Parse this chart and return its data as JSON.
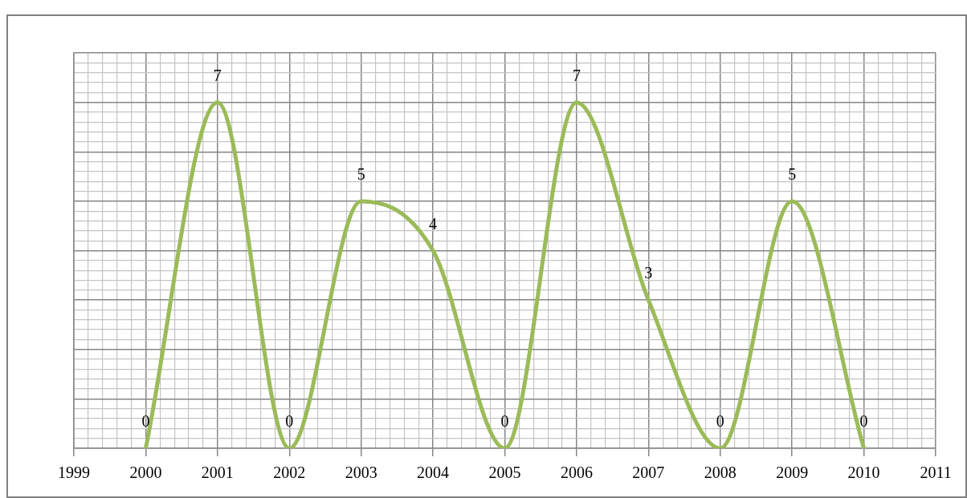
{
  "chart_data": {
    "type": "line",
    "x": [
      2000,
      2001,
      2002,
      2003,
      2004,
      2005,
      2006,
      2007,
      2008,
      2009,
      2010
    ],
    "series": [
      {
        "color": "#9bbb59",
        "values": [
          0,
          7,
          0,
          5,
          4,
          0,
          7,
          3,
          0,
          5,
          0
        ]
      }
    ],
    "xlim": [
      1999,
      2011
    ],
    "xticks": [
      1999,
      {
        "value": 1999.2,
        "label": null
      },
      {
        "value": 1999.4,
        "label": null
      },
      {
        "value": 1999.6,
        "label": null
      },
      {
        "value": 1999.8,
        "label": null
      },
      2000,
      {
        "value": 2000.2,
        "label": null
      },
      {
        "value": 2000.4,
        "label": null
      },
      {
        "value": 2000.6,
        "label": null
      },
      {
        "value": 2000.8,
        "label": null
      },
      2001,
      {
        "value": 2001.2,
        "label": null
      },
      {
        "value": 2001.4,
        "label": null
      },
      {
        "value": 2001.6,
        "label": null
      },
      {
        "value": 2001.8,
        "label": null
      },
      2002,
      {
        "value": 2002.2,
        "label": null
      },
      {
        "value": 2002.4,
        "label": null
      },
      {
        "value": 2002.6,
        "label": null
      },
      {
        "value": 2002.8,
        "label": null
      },
      2003,
      {
        "value": 2003.2,
        "label": null
      },
      {
        "value": 2003.4,
        "label": null
      },
      {
        "value": 2003.6,
        "label": null
      },
      {
        "value": 2003.8,
        "label": null
      },
      2004,
      {
        "value": 2004.2,
        "label": null
      },
      {
        "value": 2004.4,
        "label": null
      },
      {
        "value": 2004.6,
        "label": null
      },
      {
        "value": 2004.8,
        "label": null
      },
      2005,
      {
        "value": 2005.2,
        "label": null
      },
      {
        "value": 2005.4,
        "label": null
      },
      {
        "value": 2005.6,
        "label": null
      },
      {
        "value": 2005.8,
        "label": null
      },
      2006,
      {
        "value": 2006.2,
        "label": null
      },
      {
        "value": 2006.4,
        "label": null
      },
      {
        "value": 2006.6,
        "label": null
      },
      {
        "value": 2006.8,
        "label": null
      },
      2007,
      {
        "value": 2007.2,
        "label": null
      },
      {
        "value": 2007.4,
        "label": null
      },
      {
        "value": 2007.6,
        "label": null
      },
      {
        "value": 2007.8,
        "label": null
      },
      2008,
      {
        "value": 2008.2,
        "label": null
      },
      {
        "value": 2008.4,
        "label": null
      },
      {
        "value": 2008.6,
        "label": null
      },
      {
        "value": 2008.8,
        "label": null
      },
      2009,
      {
        "value": 2009.2,
        "label": null
      },
      {
        "value": 2009.4,
        "label": null
      },
      {
        "value": 2009.6,
        "label": null
      },
      {
        "value": 2009.8,
        "label": null
      },
      2010,
      {
        "value": 2010.2,
        "label": null
      },
      {
        "value": 2010.4,
        "label": null
      },
      {
        "value": 2010.6,
        "label": null
      },
      {
        "value": 2010.8,
        "label": null
      },
      2011
    ],
    "ylim": [
      0,
      8
    ],
    "yticks": [
      {
        "value": 0,
        "label": null
      },
      {
        "value": 0.2,
        "label": null
      },
      {
        "value": 0.4,
        "label": null
      },
      {
        "value": 0.6,
        "label": null
      },
      {
        "value": 0.8,
        "label": null
      },
      {
        "value": 1,
        "label": null
      },
      {
        "value": 1.2,
        "label": null
      },
      {
        "value": 1.4,
        "label": null
      },
      {
        "value": 1.6,
        "label": null
      },
      {
        "value": 1.8,
        "label": null
      },
      {
        "value": 2,
        "label": null
      },
      {
        "value": 2.2,
        "label": null
      },
      {
        "value": 2.4,
        "label": null
      },
      {
        "value": 2.6,
        "label": null
      },
      {
        "value": 2.8,
        "label": null
      },
      {
        "value": 3,
        "label": null
      },
      {
        "value": 3.2,
        "label": null
      },
      {
        "value": 3.4,
        "label": null
      },
      {
        "value": 3.6,
        "label": null
      },
      {
        "value": 3.8,
        "label": null
      },
      {
        "value": 4,
        "label": null
      },
      {
        "value": 4.2,
        "label": null
      },
      {
        "value": 4.4,
        "label": null
      },
      {
        "value": 4.6,
        "label": null
      },
      {
        "value": 4.8,
        "label": null
      },
      {
        "value": 5,
        "label": null
      },
      {
        "value": 5.2,
        "label": null
      },
      {
        "value": 5.4,
        "label": null
      },
      {
        "value": 5.6,
        "label": null
      },
      {
        "value": 5.8,
        "label": null
      },
      {
        "value": 6,
        "label": null
      },
      {
        "value": 6.2,
        "label": null
      },
      {
        "value": 6.4,
        "label": null
      },
      {
        "value": 6.6,
        "label": null
      },
      {
        "value": 6.8,
        "label": null
      },
      {
        "value": 7,
        "label": null
      },
      {
        "value": 7.2,
        "label": null
      },
      {
        "value": 7.4,
        "label": null
      },
      {
        "value": 7.6,
        "label": null
      },
      {
        "value": 7.8,
        "label": null
      },
      {
        "value": 8,
        "label": null
      }
    ],
    "tick_labels": "x",
    "grid": true,
    "data_labels": true,
    "legend": false,
    "marker": "none"
  }
}
